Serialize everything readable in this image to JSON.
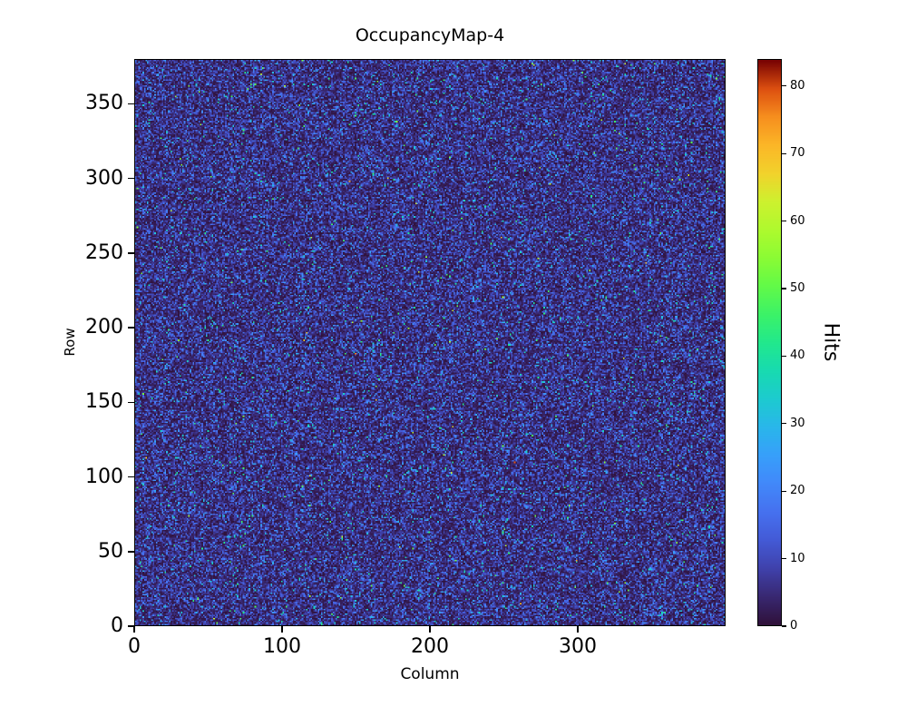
{
  "chart_data": {
    "type": "heatmap",
    "title": "OccupancyMap-4",
    "xlabel": "Column",
    "ylabel": "Row",
    "colorbar_label": "Hits",
    "x_range": [
      0,
      400
    ],
    "y_range": [
      0,
      380
    ],
    "value_range": [
      0,
      84
    ],
    "x_ticks": [
      0,
      100,
      200,
      300
    ],
    "y_ticks": [
      0,
      50,
      100,
      150,
      200,
      250,
      300,
      350
    ],
    "colorbar_ticks": [
      0,
      10,
      20,
      30,
      40,
      50,
      60,
      70,
      80
    ],
    "grid_cols": 400,
    "grid_rows": 380,
    "colormap": "turbo",
    "colormap_stops": [
      [
        0.0,
        48,
        18,
        59
      ],
      [
        0.05,
        57,
        41,
        115
      ],
      [
        0.1,
        64,
        67,
        173
      ],
      [
        0.15,
        68,
        91,
        215
      ],
      [
        0.2,
        70,
        114,
        240
      ],
      [
        0.25,
        66,
        137,
        250
      ],
      [
        0.3,
        56,
        160,
        251
      ],
      [
        0.35,
        42,
        183,
        235
      ],
      [
        0.4,
        29,
        203,
        208
      ],
      [
        0.45,
        24,
        219,
        177
      ],
      [
        0.5,
        34,
        233,
        141
      ],
      [
        0.55,
        60,
        243,
        104
      ],
      [
        0.6,
        98,
        250,
        73
      ],
      [
        0.65,
        139,
        252,
        53
      ],
      [
        0.7,
        175,
        250,
        46
      ],
      [
        0.75,
        206,
        242,
        47
      ],
      [
        0.8,
        242,
        211,
        44
      ],
      [
        0.85,
        252,
        183,
        40
      ],
      [
        0.9,
        247,
        144,
        31
      ],
      [
        0.95,
        222,
        81,
        17
      ],
      [
        1.0,
        122,
        4,
        3
      ]
    ],
    "data_description": "Random per-pixel hit-count occupancy noise over a 400x380 pixel matrix; most pixels near 0 hits (dark), sparse speckles up to ~84 hits; counts approximately exponentially distributed",
    "noise": {
      "seed": 4,
      "mean_hits": 7,
      "max_hits": 84
    },
    "legend_position": "right-colorbar",
    "grid": false
  }
}
